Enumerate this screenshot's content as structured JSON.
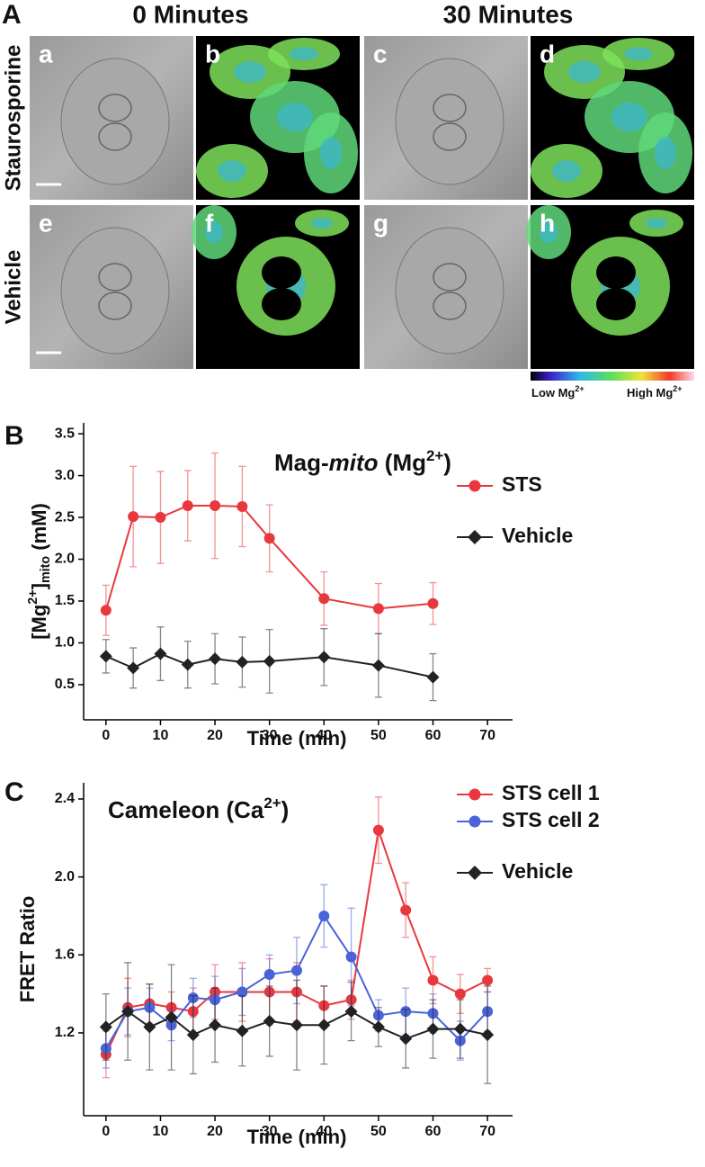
{
  "panel_a": {
    "label": "A",
    "columns": [
      "0 Minutes",
      "30 Minutes"
    ],
    "rows": [
      "Staurosporine",
      "Vehicle"
    ],
    "images": [
      "a",
      "b",
      "c",
      "d",
      "e",
      "f",
      "g",
      "h"
    ],
    "colorbar_low": [
      "Low Mg",
      "2+"
    ],
    "colorbar_high": [
      "High Mg",
      "2+"
    ]
  },
  "chart_data": [
    {
      "type": "line",
      "panel_label": "B",
      "title": [
        "Mag-",
        "mito",
        " (Mg",
        "2+",
        ")"
      ],
      "y_label": [
        "[Mg",
        "2+",
        "]",
        "mito",
        " (mM)"
      ],
      "x_label": "Time (min)",
      "x": [
        0,
        5,
        10,
        15,
        20,
        25,
        30,
        40,
        50,
        60
      ],
      "xlim": [
        -4.1,
        74.6
      ],
      "xticks": [
        0,
        10,
        20,
        30,
        40,
        50,
        60,
        70
      ],
      "ylim": [
        0.08,
        3.63
      ],
      "yticks": [
        0.5,
        {
          "value": 1,
          "label": "1.0"
        },
        1.5,
        {
          "value": 2,
          "label": "2.0"
        },
        2.5,
        {
          "value": 3,
          "label": "3.0"
        },
        3.5
      ],
      "legend": "right",
      "series": [
        {
          "name": "STS",
          "color": "#e8383d",
          "marker": "circle",
          "values": [
            1.39,
            2.51,
            2.5,
            2.64,
            2.64,
            2.63,
            2.25,
            1.53,
            1.41,
            1.47
          ],
          "errors": [
            0.3,
            0.6,
            0.55,
            0.42,
            0.63,
            0.48,
            0.4,
            0.32,
            0.3,
            0.25
          ]
        },
        {
          "name": "Vehicle",
          "color": "#222222",
          "marker": "diamond",
          "values": [
            0.84,
            0.7,
            0.87,
            0.74,
            0.81,
            0.77,
            0.78,
            0.83,
            0.73,
            0.59
          ],
          "errors": [
            0.2,
            0.24,
            0.32,
            0.28,
            0.3,
            0.3,
            0.38,
            0.34,
            0.38,
            0.28
          ]
        }
      ]
    },
    {
      "type": "line",
      "panel_label": "C",
      "title": [
        "Cameleon (Ca",
        "2+",
        ")"
      ],
      "y_label": [
        "FRET Ratio"
      ],
      "x_label": "Time (min)",
      "x": [
        0,
        4,
        8,
        12,
        16,
        20,
        25,
        30,
        35,
        40,
        45,
        50,
        55,
        60,
        65,
        70
      ],
      "xlim": [
        -4.1,
        74.6
      ],
      "xticks": [
        0,
        10,
        20,
        30,
        40,
        50,
        60,
        70
      ],
      "ylim": [
        0.775,
        2.483
      ],
      "yticks": [
        1.2,
        1.6,
        {
          "value": 2,
          "label": "2.0"
        },
        2.4
      ],
      "legend": "right",
      "series": [
        {
          "name": "STS cell 1",
          "color": "#e8383d",
          "marker": "circle",
          "values": [
            1.09,
            1.33,
            1.35,
            1.33,
            1.31,
            1.41,
            1.41,
            1.41,
            1.41,
            1.34,
            1.37,
            2.24,
            1.83,
            1.47,
            1.4,
            1.47
          ],
          "errors": [
            0.12,
            0.15,
            0.1,
            0.08,
            0.12,
            0.14,
            0.15,
            0.17,
            0.15,
            0.1,
            0.1,
            0.17,
            0.14,
            0.12,
            0.1,
            0.06
          ]
        },
        {
          "name": "STS cell 2",
          "color": "#4a63d8",
          "marker": "circle",
          "values": [
            1.12,
            1.31,
            1.33,
            1.24,
            1.38,
            1.37,
            1.41,
            1.5,
            1.52,
            1.8,
            1.59,
            1.29,
            1.31,
            1.3,
            1.16,
            1.31
          ],
          "errors": [
            0.1,
            0.12,
            0.1,
            0.08,
            0.1,
            0.12,
            0.12,
            0.1,
            0.17,
            0.16,
            0.25,
            0.08,
            0.12,
            0.1,
            0.1,
            0.1
          ]
        },
        {
          "name": "Vehicle",
          "color": "#222222",
          "marker": "diamond",
          "values": [
            1.23,
            1.31,
            1.23,
            1.28,
            1.19,
            1.24,
            1.21,
            1.26,
            1.24,
            1.24,
            1.31,
            1.23,
            1.17,
            1.22,
            1.22,
            1.19
          ],
          "errors": [
            0.17,
            0.25,
            0.22,
            0.27,
            0.2,
            0.19,
            0.18,
            0.18,
            0.23,
            0.2,
            0.15,
            0.1,
            0.15,
            0.15,
            0.15,
            0.25
          ]
        }
      ]
    }
  ]
}
